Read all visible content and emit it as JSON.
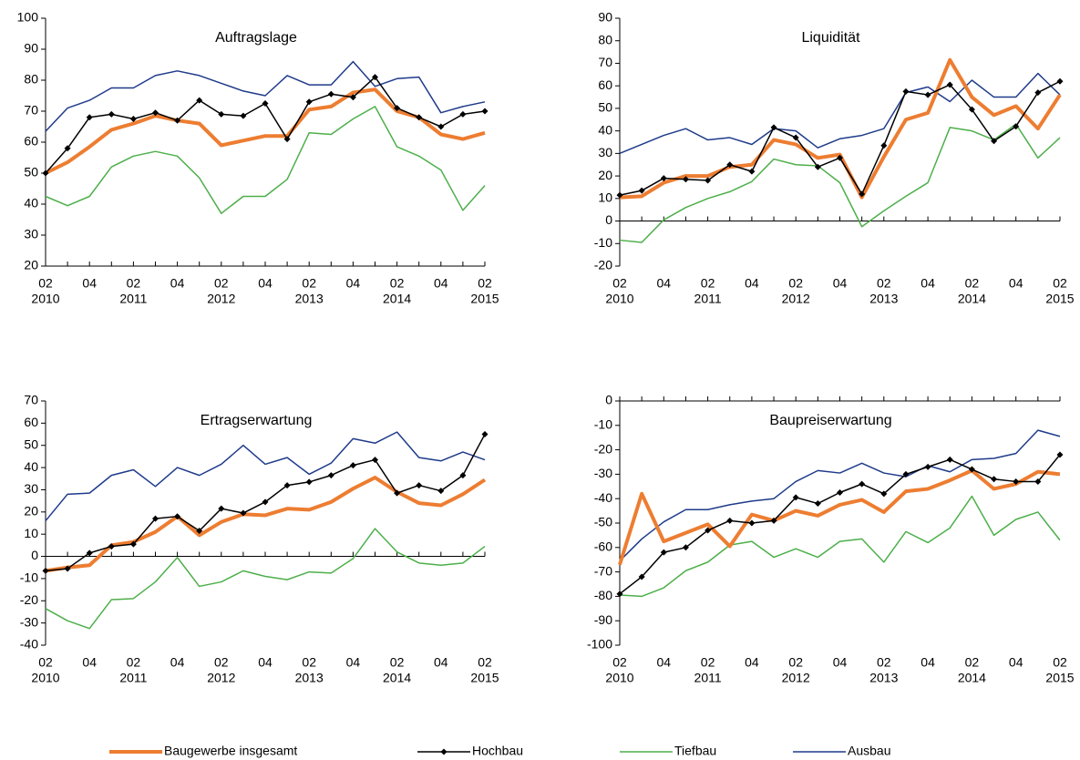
{
  "chart_data": [
    {
      "type": "line",
      "title": "Auftragslage",
      "categories": [
        "02",
        null,
        "04",
        null,
        "02",
        null,
        "04",
        null,
        "02",
        null,
        "04",
        null,
        "02",
        null,
        "04",
        null,
        "02",
        null,
        "04",
        null,
        "02"
      ],
      "category_groups": [
        "2010",
        null,
        null,
        null,
        "2011",
        null,
        null,
        null,
        "2012",
        null,
        null,
        null,
        "2013",
        null,
        null,
        null,
        "2014",
        null,
        null,
        null,
        "2015"
      ],
      "ylim": [
        20,
        100
      ],
      "yticks": [
        20,
        30,
        40,
        50,
        60,
        70,
        80,
        90,
        100
      ],
      "series": [
        {
          "name": "Baugewerbe insgesamt",
          "color": "#ed7d31",
          "values": [
            50,
            53.5,
            58.5,
            64,
            66,
            68.5,
            67,
            66,
            59,
            60.5,
            62,
            62,
            70.5,
            71.5,
            76,
            77,
            70,
            68,
            62.5,
            61,
            63
          ]
        },
        {
          "name": "Hochbau",
          "color": "#000000",
          "values": [
            50,
            58,
            68,
            69,
            67.5,
            69.5,
            67,
            73.5,
            69,
            68.5,
            72.5,
            61,
            73,
            75.5,
            74.5,
            81,
            71,
            68,
            65,
            69,
            70
          ]
        },
        {
          "name": "Tiefbau",
          "color": "#4daf4a",
          "values": [
            42.5,
            39.5,
            42.5,
            52,
            55.5,
            57,
            55.5,
            48.5,
            37,
            42.5,
            42.5,
            48,
            63,
            62.5,
            67.5,
            71.5,
            58.5,
            55.5,
            51,
            38,
            46
          ]
        },
        {
          "name": "Ausbau",
          "color": "#1f3b8a",
          "values": [
            63.5,
            71,
            73.5,
            77.5,
            77.5,
            81.5,
            83,
            81.5,
            79,
            76.5,
            75,
            81.5,
            78.5,
            78.5,
            86,
            78,
            80.5,
            81,
            69.5,
            71.5,
            73
          ]
        }
      ]
    },
    {
      "type": "line",
      "title": "Liquidität",
      "categories": [
        "02",
        null,
        "04",
        null,
        "02",
        null,
        "04",
        null,
        "02",
        null,
        "04",
        null,
        "02",
        null,
        "04",
        null,
        "02",
        null,
        "04",
        null,
        "02"
      ],
      "category_groups": [
        "2010",
        null,
        null,
        null,
        "2011",
        null,
        null,
        null,
        "2012",
        null,
        null,
        null,
        "2013",
        null,
        null,
        null,
        "2014",
        null,
        null,
        null,
        "2015"
      ],
      "ylim": [
        -20,
        90
      ],
      "yticks": [
        -20,
        -10,
        0,
        10,
        20,
        30,
        40,
        50,
        60,
        70,
        80,
        90
      ],
      "series": [
        {
          "color": "#ed7d31",
          "values": [
            10.5,
            11,
            17,
            20,
            20,
            24,
            25,
            36,
            34,
            28,
            29.5,
            10.5,
            28.5,
            45,
            48,
            71.5,
            55,
            47,
            51,
            41,
            56
          ]
        },
        {
          "color": "#000000",
          "values": [
            11.5,
            13.5,
            19,
            18.5,
            18,
            25,
            22,
            41.5,
            37,
            24,
            28,
            12,
            33.5,
            57.5,
            56,
            60.5,
            49.5,
            35.5,
            42,
            57,
            62
          ]
        },
        {
          "color": "#4daf4a",
          "values": [
            -8.5,
            -9.5,
            0.5,
            6,
            10,
            13,
            17.5,
            27.5,
            25,
            24.5,
            17,
            -2.5,
            4.5,
            11,
            17,
            41.5,
            40,
            36,
            43,
            28,
            37
          ]
        },
        {
          "color": "#1f3b8a",
          "values": [
            30,
            34,
            38,
            41,
            36,
            37,
            34,
            41,
            40,
            32.5,
            36.5,
            38,
            41,
            57,
            59.5,
            53,
            62.5,
            55,
            55,
            65.5,
            56
          ]
        }
      ]
    },
    {
      "type": "line",
      "title": "Ertragserwartung",
      "categories": [
        "02",
        null,
        "04",
        null,
        "02",
        null,
        "04",
        null,
        "02",
        null,
        "04",
        null,
        "02",
        null,
        "04",
        null,
        "02",
        null,
        "04",
        null,
        "02"
      ],
      "category_groups": [
        "2010",
        null,
        null,
        null,
        "2011",
        null,
        null,
        null,
        "2012",
        null,
        null,
        null,
        "2013",
        null,
        null,
        null,
        "2014",
        null,
        null,
        null,
        "2015"
      ],
      "ylim": [
        -40,
        70
      ],
      "yticks": [
        -40,
        -30,
        -20,
        -10,
        0,
        10,
        20,
        30,
        40,
        50,
        60,
        70
      ],
      "series": [
        {
          "color": "#ed7d31",
          "values": [
            -6.5,
            -5,
            -4,
            5,
            6.5,
            11,
            18,
            9.5,
            15.5,
            19,
            18.5,
            21.5,
            21,
            24.5,
            30.5,
            35.5,
            29,
            24,
            23,
            28,
            34.5
          ]
        },
        {
          "color": "#000000",
          "values": [
            -6.5,
            -5.5,
            1.5,
            4.5,
            5.5,
            17,
            18,
            11.5,
            21.5,
            19.5,
            24.5,
            32,
            33.5,
            36.5,
            41,
            43.5,
            28.5,
            32,
            29.5,
            36.5,
            55
          ]
        },
        {
          "color": "#4daf4a",
          "values": [
            -23.5,
            -29,
            -32.5,
            -19.5,
            -19,
            -11.5,
            -0.5,
            -13.5,
            -11.5,
            -6.5,
            -9,
            -10.5,
            -7,
            -7.5,
            -1,
            12.5,
            2,
            -3,
            -4,
            -3,
            4.5
          ]
        },
        {
          "color": "#1f3b8a",
          "values": [
            16,
            28,
            28.5,
            36.5,
            39,
            31.5,
            40,
            36.5,
            41.5,
            50,
            41.5,
            44.5,
            37,
            42,
            53,
            51,
            56,
            44.5,
            43,
            47,
            43.5
          ]
        }
      ]
    },
    {
      "type": "line",
      "title": "Baupreiserwartung",
      "categories": [
        "02",
        null,
        "04",
        null,
        "02",
        null,
        "04",
        null,
        "02",
        null,
        "04",
        null,
        "02",
        null,
        "04",
        null,
        "02",
        null,
        "04",
        null,
        "02"
      ],
      "category_groups": [
        "2010",
        null,
        null,
        null,
        "2011",
        null,
        null,
        null,
        "2012",
        null,
        null,
        null,
        "2013",
        null,
        null,
        null,
        "2014",
        null,
        null,
        null,
        "2015"
      ],
      "ylim": [
        -100,
        0
      ],
      "yticks": [
        -100,
        -90,
        -80,
        -70,
        -60,
        -50,
        -40,
        -30,
        -20,
        -10,
        0
      ],
      "series": [
        {
          "color": "#ed7d31",
          "values": [
            -67,
            -38,
            -57.5,
            -54,
            -50.5,
            -59.5,
            -46.5,
            -49,
            -45,
            -47,
            -42.5,
            -40.5,
            -45.5,
            -37,
            -36,
            -32.5,
            -28.5,
            -36,
            -34,
            -29,
            -30
          ]
        },
        {
          "color": "#000000",
          "values": [
            -79,
            -72,
            -62,
            -60,
            -53,
            -49,
            -50,
            -49,
            -39.5,
            -42,
            -37.5,
            -34,
            -38,
            -30,
            -27,
            -24,
            -28,
            -32,
            -33,
            -33,
            -22
          ]
        },
        {
          "color": "#4daf4a",
          "values": [
            -79.5,
            -80,
            -76.5,
            -69.5,
            -66,
            -59,
            -57.5,
            -64,
            -60.5,
            -64,
            -57.5,
            -56.5,
            -66,
            -53.5,
            -58,
            -52,
            -39,
            -55,
            -48.5,
            -45.5,
            -57
          ]
        },
        {
          "color": "#1f3b8a",
          "values": [
            -65.5,
            -56.5,
            -49.5,
            -44.5,
            -44.5,
            -42.5,
            -41,
            -40,
            -33,
            -28.5,
            -29.5,
            -25.5,
            -29.5,
            -31,
            -26.5,
            -29,
            -24,
            -23.5,
            -21.5,
            -12,
            -14.5
          ]
        }
      ]
    }
  ]
}
